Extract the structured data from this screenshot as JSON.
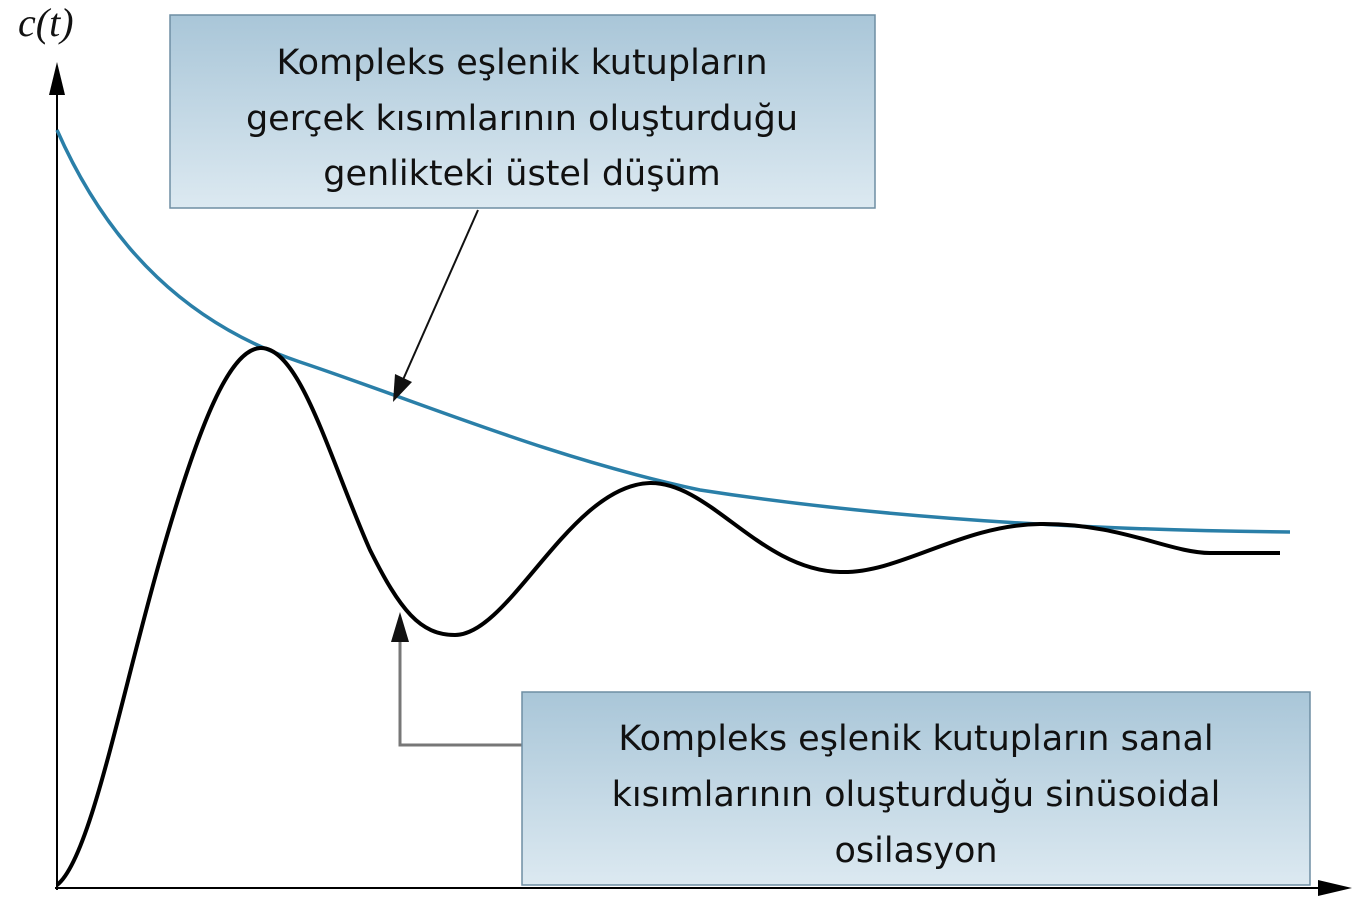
{
  "axis_label": "c(t)",
  "annotations": [
    {
      "lines": [
        "Kompleks eşlenik kutupların",
        "gerçek kısımlarının oluşturduğu",
        "genlikteki üstel düşüm"
      ]
    },
    {
      "lines": [
        "Kompleks eşlenik kutupların sanal",
        "kısımlarının oluşturduğu sinüsoidal",
        "osilasyon"
      ]
    }
  ]
}
